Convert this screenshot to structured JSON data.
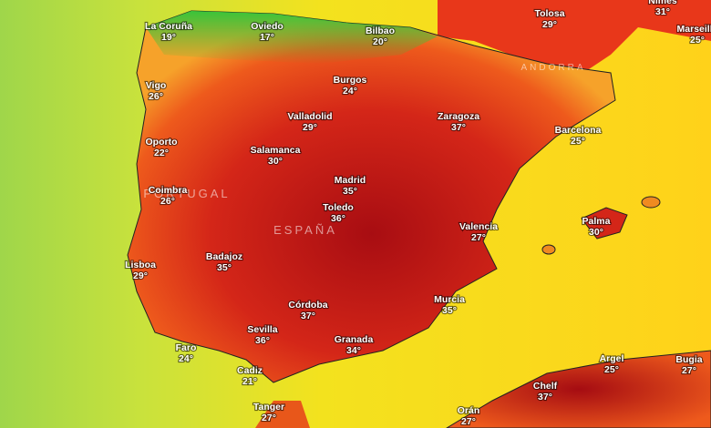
{
  "map": {
    "regions": [
      "PORTUGAL",
      "ESPAÑA",
      "ANDORRA"
    ],
    "cities": [
      {
        "name": "La Coruña",
        "temp": "19°"
      },
      {
        "name": "Oviedo",
        "temp": "17°"
      },
      {
        "name": "Bilbao",
        "temp": "20°"
      },
      {
        "name": "Tolosa",
        "temp": "29°"
      },
      {
        "name": "Nimes",
        "temp": "31°"
      },
      {
        "name": "Marseille",
        "temp": "25°"
      },
      {
        "name": "Vigo",
        "temp": "26°"
      },
      {
        "name": "Burgos",
        "temp": "24°"
      },
      {
        "name": "Valladolid",
        "temp": "29°"
      },
      {
        "name": "Zaragoza",
        "temp": "37°"
      },
      {
        "name": "Barcelona",
        "temp": "25°"
      },
      {
        "name": "Oporto",
        "temp": "22°"
      },
      {
        "name": "Salamanca",
        "temp": "30°"
      },
      {
        "name": "Madrid",
        "temp": "35°"
      },
      {
        "name": "Coimbra",
        "temp": "26°"
      },
      {
        "name": "Toledo",
        "temp": "36°"
      },
      {
        "name": "Palma",
        "temp": "30°"
      },
      {
        "name": "Valencia",
        "temp": "27°"
      },
      {
        "name": "Badajoz",
        "temp": "35°"
      },
      {
        "name": "Lisboa",
        "temp": "29°"
      },
      {
        "name": "Córdoba",
        "temp": "37°"
      },
      {
        "name": "Murcia",
        "temp": "35°"
      },
      {
        "name": "Sevilla",
        "temp": "36°"
      },
      {
        "name": "Granada",
        "temp": "34°"
      },
      {
        "name": "Faro",
        "temp": "24°"
      },
      {
        "name": "Argel",
        "temp": "25°"
      },
      {
        "name": "Bugia",
        "temp": "27°"
      },
      {
        "name": "Cadiz",
        "temp": "21°"
      },
      {
        "name": "Chelf",
        "temp": "37°"
      },
      {
        "name": "Tanger",
        "temp": "27°"
      },
      {
        "name": "Orán",
        "temp": "27°"
      }
    ]
  }
}
